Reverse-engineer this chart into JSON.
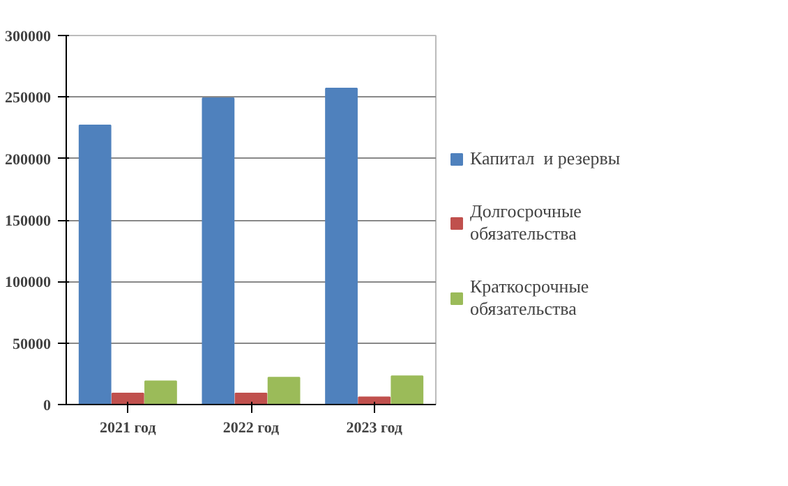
{
  "chart_data": {
    "type": "bar",
    "categories": [
      "2021 год",
      "2022 год",
      "2023 год"
    ],
    "series": [
      {
        "name": "Капитал  и резервы",
        "color": "#4f81bd",
        "values": [
          227000,
          249000,
          257000
        ]
      },
      {
        "name": "Долгосрочные обязательства",
        "color": "#c0504d",
        "values": [
          9000,
          9000,
          6000
        ]
      },
      {
        "name": "Краткосрочные обязательства",
        "color": "#9bbb59",
        "values": [
          19000,
          22000,
          23000
        ]
      }
    ],
    "ylim": [
      0,
      300000
    ],
    "yticks": [
      0,
      50000,
      100000,
      150000,
      200000,
      250000,
      300000
    ],
    "grid": "y",
    "legend": "right"
  }
}
